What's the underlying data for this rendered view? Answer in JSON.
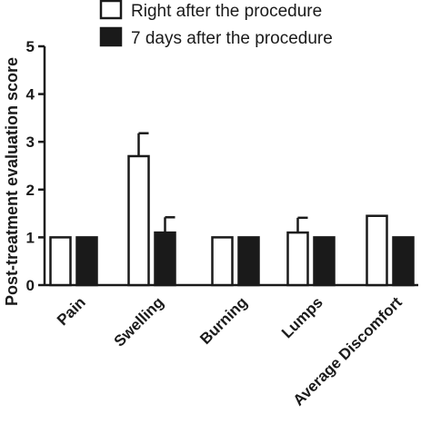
{
  "colors": {
    "series_0": "#ffffff",
    "series_1": "#1a1a1a",
    "stroke": "#1a1a1a"
  },
  "chart_data": {
    "type": "bar",
    "title": "",
    "xlabel": "",
    "ylabel": "Post-treatment evaluation score",
    "ylim": [
      0,
      5
    ],
    "yticks": [
      "0",
      "1",
      "2",
      "3",
      "4",
      "5"
    ],
    "categories": [
      "Pain",
      "Swelling",
      "Burning",
      "Lumps",
      "Average Discomfort"
    ],
    "legend_position": "top",
    "grid": false,
    "series": [
      {
        "name": "Right after the procedure",
        "values": [
          1.0,
          2.7,
          1.0,
          1.1,
          1.45
        ],
        "error_plus": [
          0,
          0.48,
          0,
          0.31,
          0
        ]
      },
      {
        "name": "7 days after the procedure",
        "values": [
          1.0,
          1.1,
          1.0,
          1.0,
          1.0
        ],
        "error_plus": [
          0,
          0.32,
          0,
          0,
          0
        ]
      }
    ]
  }
}
